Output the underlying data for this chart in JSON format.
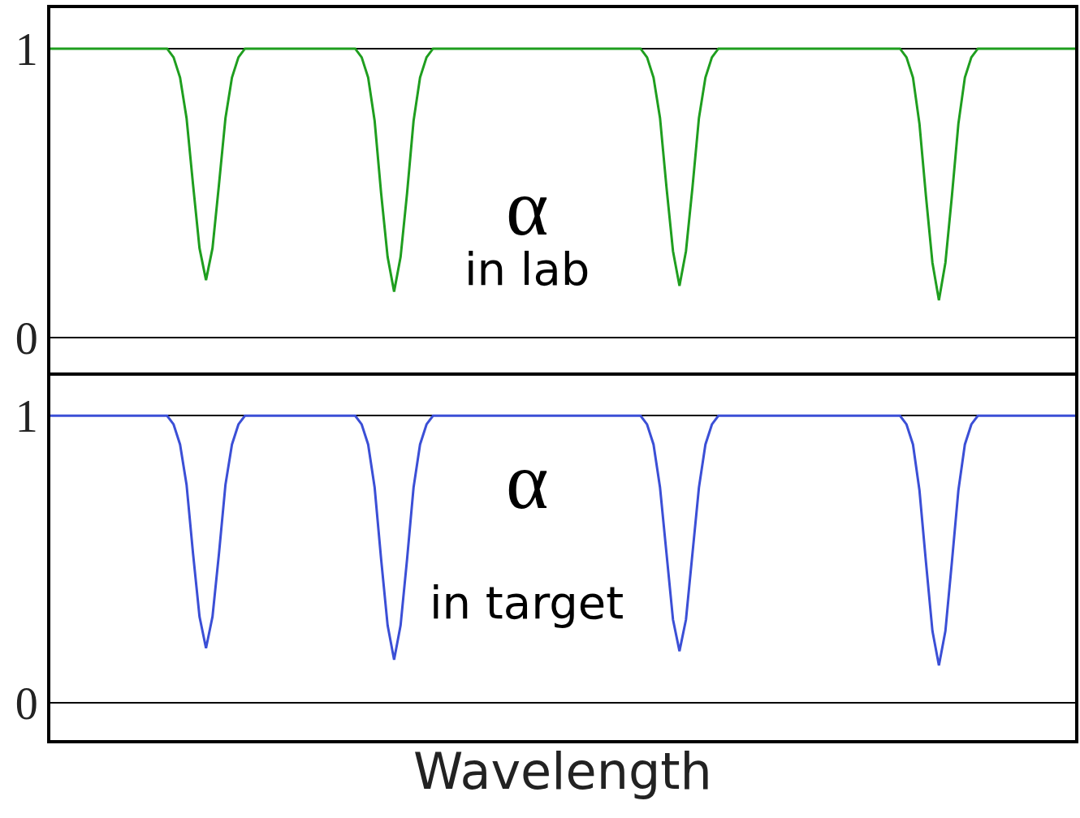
{
  "chart_data": [
    {
      "type": "line",
      "annotations": [
        "α",
        "in lab"
      ],
      "ylim": [
        -0.12,
        1.14
      ],
      "yticks": [
        0,
        1
      ],
      "grid": "y",
      "tick_labels": "y",
      "marker": "none",
      "line_style": "solid",
      "categories": [
        null,
        null,
        null,
        null,
        null,
        null,
        null,
        null,
        null,
        null,
        null,
        null,
        null,
        null,
        null,
        null,
        null,
        null,
        null,
        null,
        null,
        null,
        null,
        null,
        null,
        null,
        null,
        null,
        null,
        null,
        null,
        null,
        null,
        null,
        null,
        null,
        null,
        null,
        null,
        null,
        null,
        null,
        null,
        null,
        null,
        null,
        null,
        null,
        null,
        null,
        null,
        null,
        null,
        null,
        null,
        null,
        null,
        null,
        null,
        null,
        null,
        null,
        null,
        null,
        null,
        null,
        null,
        null,
        null,
        null,
        null,
        null,
        null,
        null,
        null,
        null,
        null,
        null,
        null,
        null,
        null,
        null,
        null,
        null,
        null,
        null,
        null,
        null,
        null,
        null,
        null,
        null,
        null,
        null,
        null,
        null,
        null,
        null,
        null,
        null,
        null,
        null,
        null,
        null,
        null,
        null,
        null,
        null,
        null,
        null,
        null,
        null,
        null,
        null,
        null,
        null,
        null,
        null,
        null,
        null,
        null,
        null,
        null,
        null,
        null,
        null,
        null,
        null,
        null,
        null,
        null,
        null,
        null,
        null,
        null,
        null,
        null,
        null,
        null,
        null,
        null,
        null,
        null,
        null,
        null,
        null,
        null,
        null,
        null,
        null,
        null,
        null,
        null,
        null,
        null,
        null,
        null,
        null,
        null
      ],
      "series": [
        {
          "color": "#1f9e1f",
          "values": [
            1,
            1,
            1,
            1,
            1,
            1,
            1,
            1,
            1,
            1,
            1,
            1,
            1,
            1,
            1,
            1,
            1,
            1,
            1,
            0.97,
            0.9,
            0.76,
            0.53,
            0.31,
            0.2,
            0.31,
            0.53,
            0.76,
            0.9,
            0.97,
            1,
            1,
            1,
            1,
            1,
            1,
            1,
            1,
            1,
            1,
            1,
            1,
            1,
            1,
            1,
            1,
            1,
            1,
            0.97,
            0.9,
            0.75,
            0.5,
            0.28,
            0.16,
            0.28,
            0.5,
            0.75,
            0.9,
            0.97,
            1,
            1,
            1,
            1,
            1,
            1,
            1,
            1,
            1,
            1,
            1,
            1,
            1,
            1,
            1,
            1,
            1,
            1,
            1,
            1,
            1,
            1,
            1,
            1,
            1,
            1,
            1,
            1,
            1,
            1,
            1,
            1,
            1,
            0.97,
            0.9,
            0.76,
            0.52,
            0.3,
            0.18,
            0.3,
            0.52,
            0.76,
            0.9,
            0.97,
            1,
            1,
            1,
            1,
            1,
            1,
            1,
            1,
            1,
            1,
            1,
            1,
            1,
            1,
            1,
            1,
            1,
            1,
            1,
            1,
            1,
            1,
            1,
            1,
            1,
            1,
            1,
            1,
            1,
            0.97,
            0.9,
            0.74,
            0.49,
            0.26,
            0.13,
            0.26,
            0.49,
            0.74,
            0.9,
            0.97,
            1,
            1,
            1,
            1,
            1,
            1,
            1,
            1,
            1,
            1,
            1,
            1,
            1,
            1,
            1,
            1
          ]
        }
      ]
    },
    {
      "type": "line",
      "annotations": [
        "α",
        "in target"
      ],
      "xlabel": "Wavelength",
      "ylim": [
        -0.13,
        1.14
      ],
      "yticks": [
        0,
        1
      ],
      "grid": "y",
      "tick_labels": "y",
      "marker": "none",
      "line_style": "solid",
      "categories": [
        null,
        null,
        null,
        null,
        null,
        null,
        null,
        null,
        null,
        null,
        null,
        null,
        null,
        null,
        null,
        null,
        null,
        null,
        null,
        null,
        null,
        null,
        null,
        null,
        null,
        null,
        null,
        null,
        null,
        null,
        null,
        null,
        null,
        null,
        null,
        null,
        null,
        null,
        null,
        null,
        null,
        null,
        null,
        null,
        null,
        null,
        null,
        null,
        null,
        null,
        null,
        null,
        null,
        null,
        null,
        null,
        null,
        null,
        null,
        null,
        null,
        null,
        null,
        null,
        null,
        null,
        null,
        null,
        null,
        null,
        null,
        null,
        null,
        null,
        null,
        null,
        null,
        null,
        null,
        null,
        null,
        null,
        null,
        null,
        null,
        null,
        null,
        null,
        null,
        null,
        null,
        null,
        null,
        null,
        null,
        null,
        null,
        null,
        null,
        null,
        null,
        null,
        null,
        null,
        null,
        null,
        null,
        null,
        null,
        null,
        null,
        null,
        null,
        null,
        null,
        null,
        null,
        null,
        null,
        null,
        null,
        null,
        null,
        null,
        null,
        null,
        null,
        null,
        null,
        null,
        null,
        null,
        null,
        null,
        null,
        null,
        null,
        null,
        null,
        null,
        null,
        null,
        null,
        null,
        null,
        null,
        null,
        null,
        null,
        null,
        null,
        null,
        null,
        null,
        null,
        null,
        null,
        null,
        null
      ],
      "series": [
        {
          "color": "#3b4fd6",
          "values": [
            1,
            1,
            1,
            1,
            1,
            1,
            1,
            1,
            1,
            1,
            1,
            1,
            1,
            1,
            1,
            1,
            1,
            1,
            1,
            0.97,
            0.9,
            0.76,
            0.52,
            0.3,
            0.19,
            0.3,
            0.52,
            0.76,
            0.9,
            0.97,
            1,
            1,
            1,
            1,
            1,
            1,
            1,
            1,
            1,
            1,
            1,
            1,
            1,
            1,
            1,
            1,
            1,
            1,
            0.97,
            0.9,
            0.75,
            0.5,
            0.27,
            0.15,
            0.27,
            0.5,
            0.75,
            0.9,
            0.97,
            1,
            1,
            1,
            1,
            1,
            1,
            1,
            1,
            1,
            1,
            1,
            1,
            1,
            1,
            1,
            1,
            1,
            1,
            1,
            1,
            1,
            1,
            1,
            1,
            1,
            1,
            1,
            1,
            1,
            1,
            1,
            1,
            1,
            0.97,
            0.9,
            0.75,
            0.52,
            0.29,
            0.18,
            0.29,
            0.52,
            0.75,
            0.9,
            0.97,
            1,
            1,
            1,
            1,
            1,
            1,
            1,
            1,
            1,
            1,
            1,
            1,
            1,
            1,
            1,
            1,
            1,
            1,
            1,
            1,
            1,
            1,
            1,
            1,
            1,
            1,
            1,
            1,
            1,
            0.97,
            0.9,
            0.74,
            0.49,
            0.25,
            0.13,
            0.25,
            0.49,
            0.74,
            0.9,
            0.97,
            1,
            1,
            1,
            1,
            1,
            1,
            1,
            1,
            1,
            1,
            1,
            1,
            1,
            1,
            1,
            1
          ]
        }
      ]
    }
  ]
}
